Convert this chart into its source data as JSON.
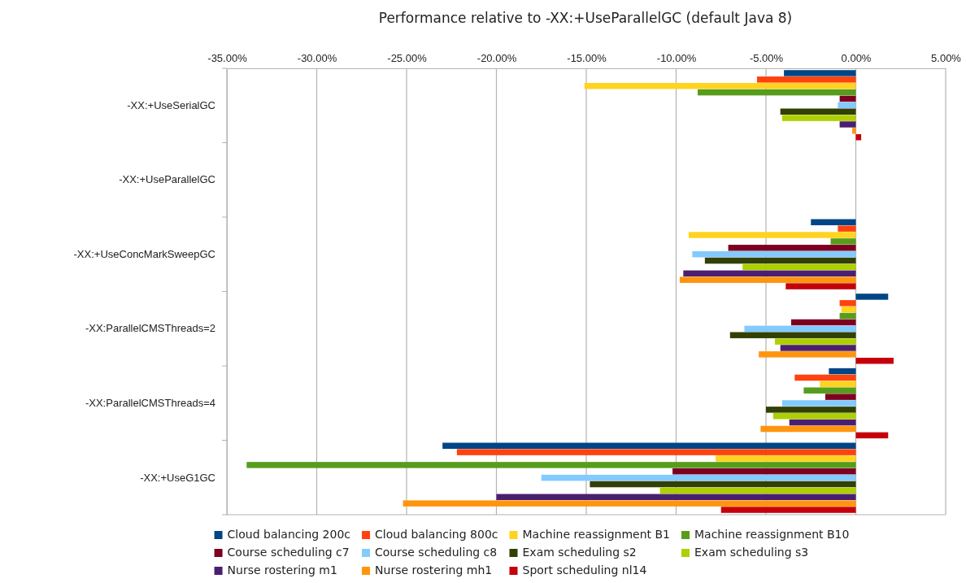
{
  "chart_data": {
    "type": "bar",
    "orientation": "horizontal",
    "title": "Performance relative to -XX:+UseParallelGC (default Java 8)",
    "categories": [
      "-XX:+UseSerialGC",
      "-XX:+UseParallelGC",
      "-XX:+UseConcMarkSweepGC",
      "-XX:ParallelCMSThreads=2",
      "-XX:ParallelCMSThreads=4",
      "-XX:+UseG1GC"
    ],
    "xlim": [
      -35,
      5
    ],
    "xticks": [
      {
        "value": -35,
        "label": "-35.00%"
      },
      {
        "value": -30,
        "label": "-30.00%"
      },
      {
        "value": -25,
        "label": "-25.00%"
      },
      {
        "value": -20,
        "label": "-20.00%"
      },
      {
        "value": -15,
        "label": "-15.00%"
      },
      {
        "value": -10,
        "label": "-10.00%"
      },
      {
        "value": -5,
        "label": "-5.00%"
      },
      {
        "value": 0,
        "label": "0.00%"
      },
      {
        "value": 5,
        "label": "5.00%"
      }
    ],
    "grid": "x",
    "legend": "bottom",
    "series": [
      {
        "name": "Cloud balancing 200c",
        "color": "#004586",
        "values": [
          -4.0,
          0,
          -2.5,
          1.8,
          -1.5,
          -23.0
        ]
      },
      {
        "name": "Cloud balancing 800c",
        "color": "#ff420e",
        "values": [
          -5.5,
          0,
          -1.0,
          -0.9,
          -3.4,
          -22.2
        ]
      },
      {
        "name": "Machine reassignment B1",
        "color": "#ffd320",
        "values": [
          -15.1,
          0,
          -9.3,
          -0.8,
          -2.0,
          -7.8
        ]
      },
      {
        "name": "Machine reassignment B10",
        "color": "#579d1c",
        "values": [
          -8.8,
          0,
          -1.4,
          -0.9,
          -2.9,
          -33.9
        ]
      },
      {
        "name": "Course scheduling c7",
        "color": "#7e0021",
        "values": [
          -0.9,
          0,
          -7.1,
          -3.6,
          -1.7,
          -10.2
        ]
      },
      {
        "name": "Course scheduling c8",
        "color": "#83caff",
        "values": [
          -1.0,
          0,
          -9.1,
          -6.2,
          -4.1,
          -17.5
        ]
      },
      {
        "name": "Exam scheduling s2",
        "color": "#314004",
        "values": [
          -4.2,
          0,
          -8.4,
          -7.0,
          -5.0,
          -14.8
        ]
      },
      {
        "name": "Exam scheduling s3",
        "color": "#aecf00",
        "values": [
          -4.1,
          0,
          -6.3,
          -4.5,
          -4.6,
          -10.9
        ]
      },
      {
        "name": "Nurse rostering m1",
        "color": "#4b1f6f",
        "values": [
          -0.9,
          0,
          -9.6,
          -4.2,
          -3.7,
          -20.0
        ]
      },
      {
        "name": "Nurse rostering mh1",
        "color": "#ff950e",
        "values": [
          -0.2,
          0,
          -9.8,
          -5.4,
          -5.3,
          -25.2
        ]
      },
      {
        "name": "Sport scheduling nl14",
        "color": "#c5000b",
        "values": [
          0.3,
          0,
          -3.9,
          2.1,
          1.8,
          -7.5
        ]
      }
    ]
  }
}
